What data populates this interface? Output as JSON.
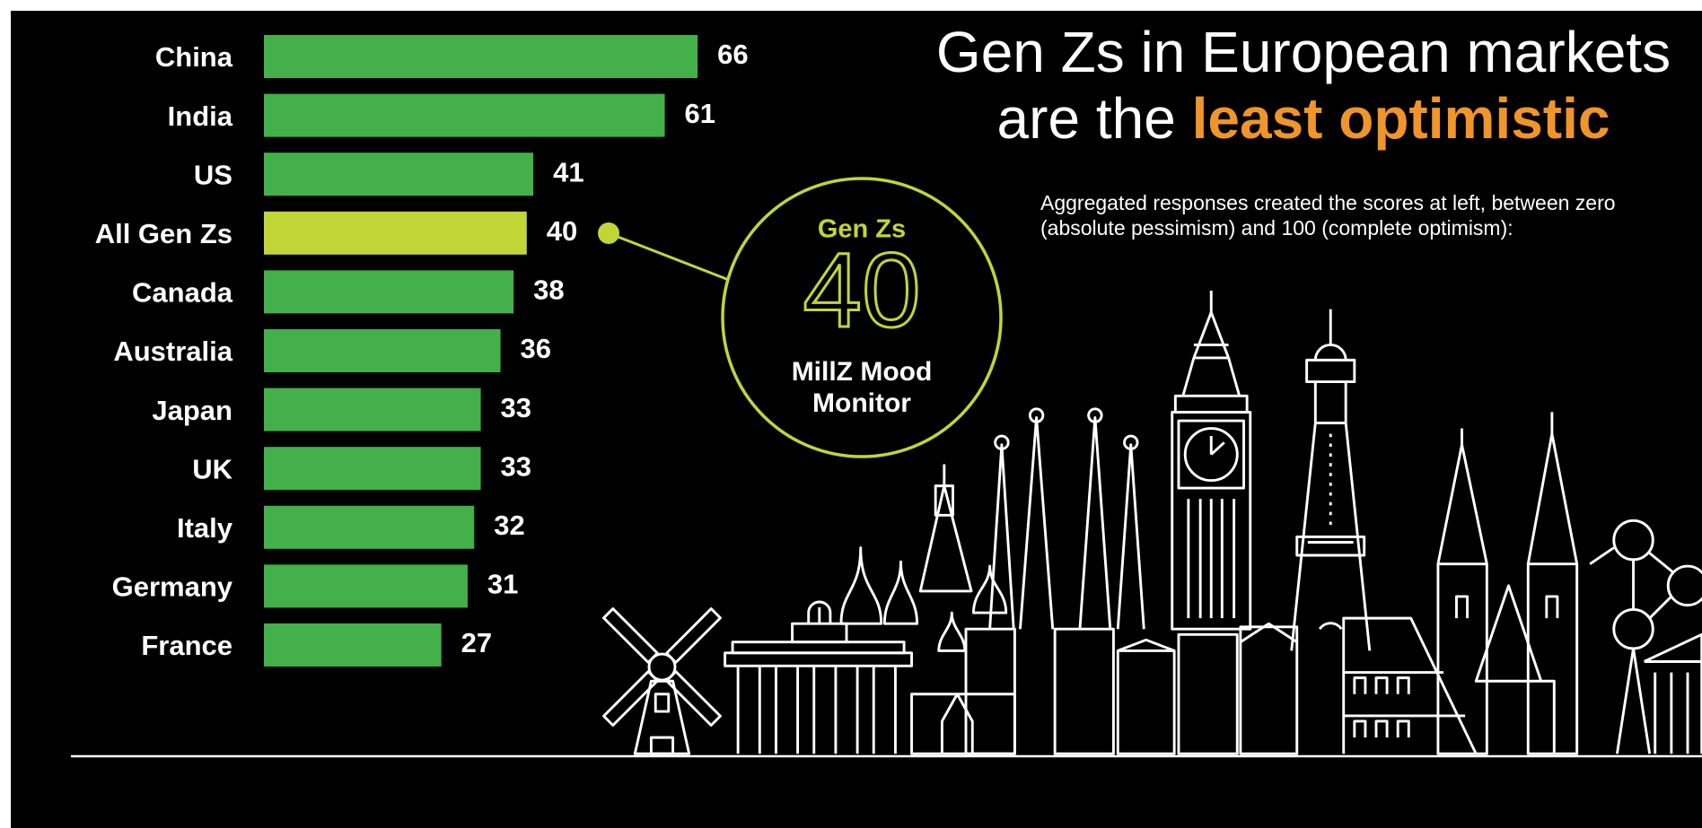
{
  "chart_data": {
    "type": "bar",
    "orientation": "horizontal",
    "title": "Gen Zs in European markets",
    "title_line2": "are the",
    "title_highlight": "least optimistic",
    "subtitle": [
      "Aggregated responses created the scores at left, between zero",
      "(absolute pessimism) and 100 (complete optimism):"
    ],
    "categories": [
      "China",
      "India",
      "US",
      "All Gen Zs",
      "Canada",
      "Australia",
      "Japan",
      "UK",
      "Italy",
      "Germany",
      "France"
    ],
    "values": [
      66,
      61,
      41,
      40,
      38,
      36,
      33,
      33,
      32,
      31,
      27
    ],
    "colors": [
      "#43b04a",
      "#43b04a",
      "#43b04a",
      "#c2d537",
      "#43b04a",
      "#43b04a",
      "#43b04a",
      "#43b04a",
      "#43b04a",
      "#43b04a",
      "#43b04a"
    ],
    "callout": {
      "heading": "Gen Zs",
      "label": [
        "MillZ Mood",
        "Monitor"
      ]
    }
  }
}
